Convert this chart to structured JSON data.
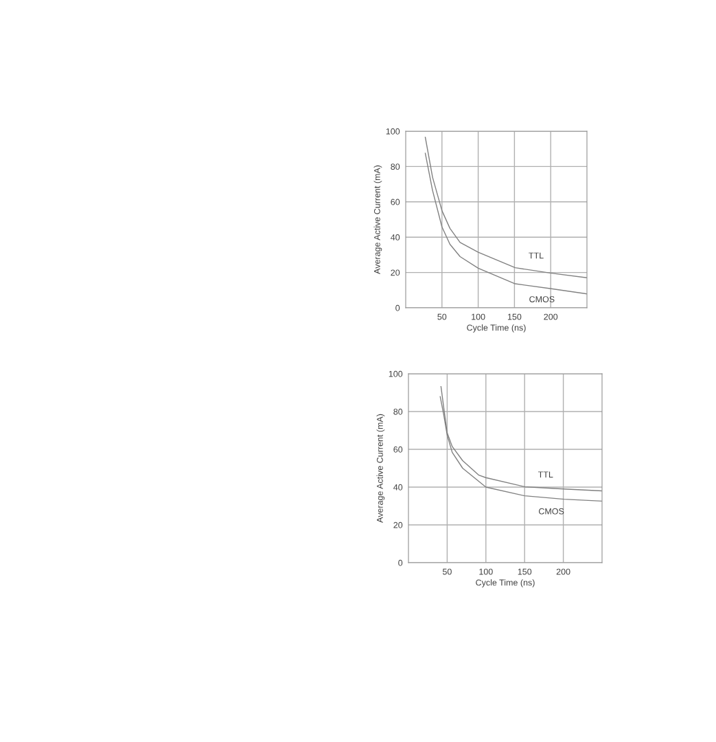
{
  "chart_data": [
    {
      "type": "line",
      "xlabel": "Cycle Time (ns)",
      "ylabel": "Average Active Current (mA)",
      "xlim": [
        0,
        250
      ],
      "xticks": [
        50,
        100,
        150,
        200
      ],
      "ylim": [
        0,
        100
      ],
      "yticks": [
        0,
        20,
        40,
        60,
        80,
        100
      ],
      "grid": true,
      "legend": false,
      "series": [
        {
          "name": "TTL",
          "color": "#808080",
          "x": [
            27,
            37,
            50,
            61,
            75,
            100,
            151,
            201,
            250
          ],
          "values": [
            96.6,
            74,
            55,
            45,
            37,
            31.5,
            22.7,
            19.6,
            17
          ]
        },
        {
          "name": "CMOS",
          "color": "#808080",
          "x": [
            27,
            37,
            50,
            61,
            75,
            100,
            151,
            201,
            250
          ],
          "values": [
            87.5,
            66.5,
            45.8,
            36,
            29,
            22.4,
            13.6,
            10.8,
            7.9
          ]
        }
      ]
    },
    {
      "type": "line",
      "xlabel": "Cycle Time (ns)",
      "ylabel": "Average Active Current (mA)",
      "xlim": [
        0,
        250
      ],
      "xticks": [
        50,
        100,
        150,
        200
      ],
      "ylim": [
        0,
        100
      ],
      "yticks": [
        0,
        20,
        40,
        60,
        80,
        100
      ],
      "grid": true,
      "legend": false,
      "series": [
        {
          "name": "TTL",
          "color": "#808080",
          "x": [
            42,
            46,
            50,
            56.5,
            70,
            91,
            100,
            150,
            201,
            250
          ],
          "values": [
            93.2,
            80.8,
            68.7,
            61.5,
            54,
            46.3,
            45,
            40.2,
            39,
            38
          ]
        },
        {
          "name": "CMOS",
          "color": "#808080",
          "x": [
            41,
            45.5,
            50,
            56.5,
            70,
            100,
            150,
            201,
            250
          ],
          "values": [
            87.9,
            78.4,
            67.5,
            58.4,
            50,
            40,
            35.4,
            33.6,
            32.6
          ]
        }
      ]
    }
  ]
}
